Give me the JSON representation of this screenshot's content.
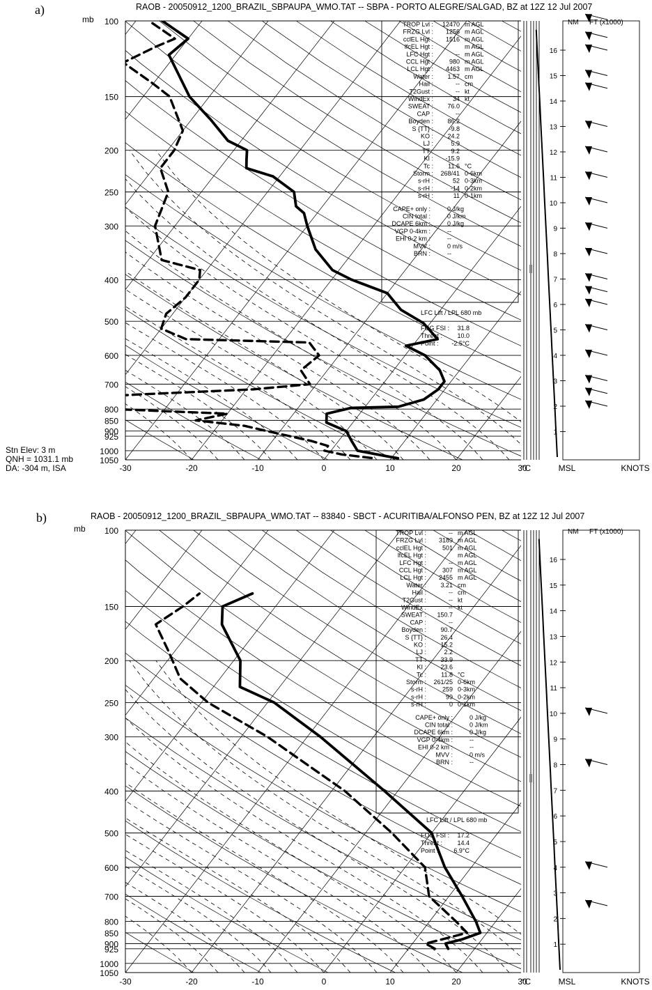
{
  "charts": [
    {
      "panel_label": "a)",
      "title": "RAOB - 20050912_1200_BRAZIL_SBPAUPA_WMO.TAT -- SBPA - PORTO ALEGRE/SALGAD, BZ at 12Z 12 Jul 2007",
      "station_notes": [
        "Stn Elev: 3 m",
        "QNH = 1031.1 mb",
        "DA: -304 m, ISA"
      ],
      "indices_left": [
        [
          "TROP  Lvl :",
          "12470",
          "m AGL"
        ],
        [
          "FRZG  Lvl :",
          "1256",
          "m AGL"
        ],
        [
          "cclEL  Hgt :",
          "1516",
          "m AGL"
        ],
        [
          "lfcEL  Hgt :",
          "",
          "m AGL"
        ],
        [
          "LFC  Hgt :",
          "--",
          "m AGL"
        ],
        [
          "CCL  Hgt :",
          "980",
          "m AGL"
        ],
        [
          "LCL Hgt :",
          "4463",
          "m AGL"
        ],
        [
          "Water :",
          "1.57",
          "cm"
        ],
        [
          "Hail :",
          "--",
          "cm"
        ],
        [
          "T2Gust :",
          "--",
          "kt"
        ],
        [
          "WindEx :",
          "34",
          "kt"
        ],
        [
          "SWEAT :",
          "76.0",
          ""
        ],
        [
          "CAP :",
          "--",
          ""
        ],
        [
          "Boyden :",
          "86.2",
          ""
        ],
        [
          "S {TT} :",
          "-9.8",
          ""
        ],
        [
          "KO :",
          "24.2",
          ""
        ],
        [
          "LJ :",
          "5.9",
          ""
        ],
        [
          "TT :",
          "9.2",
          ""
        ],
        [
          "KI :",
          "-15.9",
          ""
        ],
        [
          "Tc :",
          "11.6",
          "°C"
        ],
        [
          "Storm :",
          "268/41",
          "0-6km"
        ],
        [
          "s-rH :",
          "52",
          "0-3km"
        ],
        [
          "s-rH :",
          "-14",
          "0-2km"
        ],
        [
          "s-rH :",
          "11",
          "0-1km"
        ]
      ],
      "indices_right": [
        [
          "CAPE+ only :",
          "0 J/kg"
        ],
        [
          "CIN total :",
          "0 J/km"
        ],
        [
          "DCAPE 6km :",
          "0 J/kg"
        ],
        [
          "VGP 0-4km :",
          "--"
        ],
        [
          "EHI 0-2 km :",
          "--"
        ],
        [
          "MVV :",
          "0 m/s"
        ],
        [
          "BRN :",
          "--"
        ]
      ],
      "lfc_line": "LFC Lift  /  LPL  680 mb",
      "fog": [
        [
          "FOG FSI :",
          "31.8"
        ],
        [
          "Threat :",
          "10.0"
        ],
        [
          "Point :",
          "-2.5°C"
        ]
      ]
    },
    {
      "panel_label": "b)",
      "title": "RAOB - 20050912_1200_BRAZIL_SBPAUPA_WMO.TAT -- 83840 - SBCT - ACURITIBA/ALFONSO PEN, BZ at 12Z 12 Jul 2007",
      "station_notes": [],
      "indices_left": [
        [
          "TROP  Lvl :",
          "--",
          "m AGL"
        ],
        [
          "FRZG  Lvl :",
          "3189",
          "m AGL"
        ],
        [
          "cclEL  Hgt :",
          "501",
          "m AGL"
        ],
        [
          "lfcEL  Hgt :",
          "",
          "m AGL"
        ],
        [
          "LFC  Hgt :",
          "--",
          "m AGL"
        ],
        [
          "CCL  Hgt :",
          "307",
          "m AGL"
        ],
        [
          "LCL Hgt :",
          "2455",
          "m AGL"
        ],
        [
          "Water :",
          "3.21",
          "cm"
        ],
        [
          "Hail :",
          "--",
          "cm"
        ],
        [
          "T2Gust :",
          "--",
          "kt"
        ],
        [
          "WindEx :",
          "--",
          "kt"
        ],
        [
          "SWEAT :",
          "150.7",
          ""
        ],
        [
          "CAP :",
          "--",
          ""
        ],
        [
          "Boyden :",
          "90.7",
          ""
        ],
        [
          "S {TT} :",
          "26.4",
          ""
        ],
        [
          "KO :",
          "15.2",
          ""
        ],
        [
          "LJ :",
          "2.2",
          ""
        ],
        [
          "TT :",
          "33.9",
          ""
        ],
        [
          "KI :",
          "23.6",
          ""
        ],
        [
          "Tc :",
          "11.8",
          "°C"
        ],
        [
          "Storm :",
          "261/25",
          "0-6km"
        ],
        [
          "s-rH :",
          "259",
          "0-3km"
        ],
        [
          "s-rH :",
          "99",
          "0-2km"
        ],
        [
          "s-rH :",
          "0",
          "0-1km"
        ]
      ],
      "indices_right": [
        [
          "CAPE+ only :",
          "0 J/kg"
        ],
        [
          "CIN total :",
          "0 J/km"
        ],
        [
          "DCAPE 6km :",
          "0 J/kg"
        ],
        [
          "VGP 0-4km :",
          "--"
        ],
        [
          "EHI 0-2 km :",
          "--"
        ],
        [
          "MVV :",
          "0 m/s"
        ],
        [
          "BRN :",
          "--"
        ]
      ],
      "lfc_line": "LFC Lift  /  LPL  680 mb",
      "fog": [
        [
          "FOG FSI :",
          "17.2"
        ],
        [
          "Threat :",
          "14.4"
        ],
        [
          "Point :",
          "6.9°C"
        ]
      ]
    }
  ],
  "labels": {
    "p_unit": "mb",
    "t_unit": "°C",
    "msl": "MSL",
    "knots": "KNOTS",
    "nm": "NM",
    "ft": "FT (x1000)"
  },
  "chart_data": [
    {
      "type": "line",
      "chart": "skew-T log-P sounding a)",
      "x_axis_ticks": [
        "-30",
        "-20",
        "-10",
        "0",
        "10",
        "20",
        "30"
      ],
      "y_axis_ticks": [
        "100",
        "150",
        "200",
        "250",
        "300",
        "400",
        "500",
        "600",
        "700",
        "800",
        "850",
        "900",
        "925",
        "1000",
        "1050"
      ],
      "xlim": [
        -30,
        36
      ],
      "ylim": [
        1050,
        100
      ],
      "y_scale": "log",
      "series": [
        {
          "role": "temperature",
          "style": "solid",
          "points": [
            [
              1041,
              11
            ],
            [
              1030,
              9
            ],
            [
              1000,
              4
            ],
            [
              950,
              2
            ],
            [
              900,
              0
            ],
            [
              860,
              -4
            ],
            [
              820,
              -5
            ],
            [
              795,
              -2
            ],
            [
              790,
              5
            ],
            [
              760,
              8
            ],
            [
              720,
              9
            ],
            [
              690,
              9
            ],
            [
              650,
              7
            ],
            [
              600,
              3
            ],
            [
              570,
              -1
            ],
            [
              550,
              3
            ],
            [
              505,
              -1
            ],
            [
              470,
              -6
            ],
            [
              430,
              -10
            ],
            [
              400,
              -17
            ],
            [
              380,
              -21
            ],
            [
              340,
              -26
            ],
            [
              300,
              -30
            ],
            [
              280,
              -32
            ],
            [
              270,
              -34
            ],
            [
              250,
              -36
            ],
            [
              230,
              -41
            ],
            [
              220,
              -46
            ],
            [
              210,
              -47
            ],
            [
              200,
              -48
            ],
            [
              190,
              -52
            ],
            [
              170,
              -57
            ],
            [
              150,
              -63
            ],
            [
              120,
              -71
            ],
            [
              110,
              -70
            ],
            [
              100,
              -76
            ]
          ]
        },
        {
          "role": "dewpoint",
          "style": "dashed",
          "points": [
            [
              1040,
              7
            ],
            [
              1020,
              2
            ],
            [
              1000,
              -1
            ],
            [
              975,
              -1
            ],
            [
              950,
              -4
            ],
            [
              900,
              -12
            ],
            [
              875,
              -16
            ],
            [
              850,
              -24
            ],
            [
              820,
              -20
            ],
            [
              800,
              -38
            ],
            [
              780,
              -46
            ],
            [
              760,
              -48
            ],
            [
              740,
              -36
            ],
            [
              720,
              -19
            ],
            [
              700,
              -11
            ],
            [
              650,
              -14
            ],
            [
              600,
              -13
            ],
            [
              560,
              -16
            ],
            [
              550,
              -35
            ],
            [
              520,
              -40
            ],
            [
              480,
              -41
            ],
            [
              440,
              -40
            ],
            [
              400,
              -40
            ],
            [
              380,
              -41
            ],
            [
              360,
              -48
            ],
            [
              300,
              -53
            ],
            [
              250,
              -55
            ],
            [
              220,
              -59
            ],
            [
              200,
              -59
            ],
            [
              180,
              -60
            ],
            [
              150,
              -66
            ],
            [
              140,
              -70
            ],
            [
              125,
              -77
            ],
            [
              115,
              -74
            ],
            [
              110,
              -72
            ],
            [
              100,
              -78
            ]
          ]
        }
      ],
      "wind_barbs_ft_x1000": [
        2,
        2.5,
        3,
        4,
        5,
        6,
        6.5,
        7,
        8,
        9,
        10,
        11,
        12,
        13,
        14.5,
        15,
        16,
        16.5,
        17.2
      ],
      "altitude_ticks_ft_x1000": [
        "1",
        "2",
        "3",
        "4",
        "5",
        "6",
        "7",
        "8",
        "9",
        "10",
        "11",
        "12",
        "13",
        "14",
        "15",
        "16"
      ]
    },
    {
      "type": "line",
      "chart": "skew-T log-P sounding b)",
      "x_axis_ticks": [
        "-30",
        "-20",
        "-10",
        "0",
        "10",
        "20",
        "30"
      ],
      "y_axis_ticks": [
        "100",
        "150",
        "200",
        "250",
        "300",
        "400",
        "500",
        "600",
        "700",
        "800",
        "850",
        "900",
        "925",
        "1000",
        "1050"
      ],
      "xlim": [
        -30,
        36
      ],
      "ylim": [
        1050,
        100
      ],
      "y_scale": "log",
      "series": [
        {
          "role": "temperature",
          "style": "solid",
          "points": [
            [
              925,
              16
            ],
            [
              900,
              15
            ],
            [
              880,
              17
            ],
            [
              850,
              19
            ],
            [
              800,
              17
            ],
            [
              700,
              12
            ],
            [
              600,
              6
            ],
            [
              500,
              0
            ],
            [
              400,
              -12
            ],
            [
              300,
              -28
            ],
            [
              250,
              -39
            ],
            [
              230,
              -46
            ],
            [
              200,
              -49
            ],
            [
              165,
              -56
            ],
            [
              150,
              -58
            ],
            [
              140,
              -55
            ]
          ]
        },
        {
          "role": "dewpoint",
          "style": "dashed",
          "points": [
            [
              925,
              14
            ],
            [
              900,
              12
            ],
            [
              870,
              15
            ],
            [
              850,
              17
            ],
            [
              800,
              14
            ],
            [
              700,
              7
            ],
            [
              600,
              3
            ],
            [
              500,
              -6
            ],
            [
              400,
              -18
            ],
            [
              300,
              -36
            ],
            [
              250,
              -49
            ],
            [
              220,
              -56
            ],
            [
              190,
              -61
            ],
            [
              165,
              -66
            ],
            [
              150,
              -64
            ],
            [
              140,
              -63
            ]
          ]
        }
      ],
      "wind_barbs_ft_x1000": [
        10,
        8,
        4,
        2.5
      ],
      "altitude_ticks_ft_x1000": [
        "1",
        "2",
        "3",
        "4",
        "5",
        "6",
        "7",
        "8",
        "9",
        "10",
        "11",
        "12",
        "13",
        "14",
        "15",
        "16"
      ]
    }
  ]
}
